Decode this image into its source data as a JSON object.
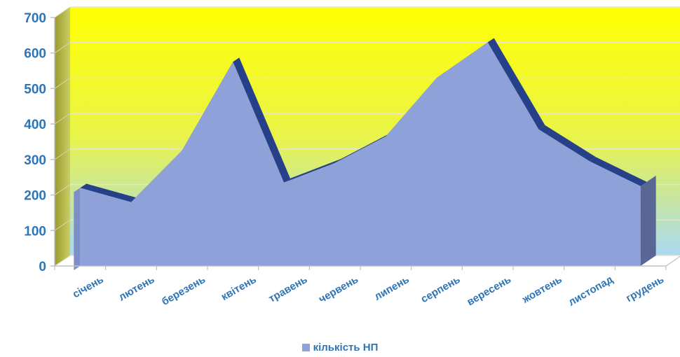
{
  "chart_data": {
    "type": "area",
    "categories": [
      "січень",
      "лютень",
      "березень",
      "квітень",
      "травень",
      "червень",
      "липень",
      "серпень",
      "вересень",
      "жовтень",
      "листопад",
      "грудень"
    ],
    "series": [
      {
        "name": "кількість НП",
        "values": [
          220,
          180,
          325,
          575,
          235,
          290,
          365,
          530,
          630,
          385,
          295,
          225
        ]
      }
    ],
    "ylim": [
      0,
      700
    ],
    "yticks": [
      "0",
      "100",
      "200",
      "300",
      "400",
      "500",
      "600",
      "700"
    ],
    "grid": true,
    "legend_position": "bottom",
    "colors": {
      "area_fill": "#8ea1d8",
      "edge_shadow": "#26408a",
      "background_top": "#ffff00",
      "background_bottom": "#b0dcef",
      "side_wall": "#8f9446",
      "axis_text": "#2e75b6"
    }
  },
  "legend": {
    "label": "кількість НП"
  }
}
